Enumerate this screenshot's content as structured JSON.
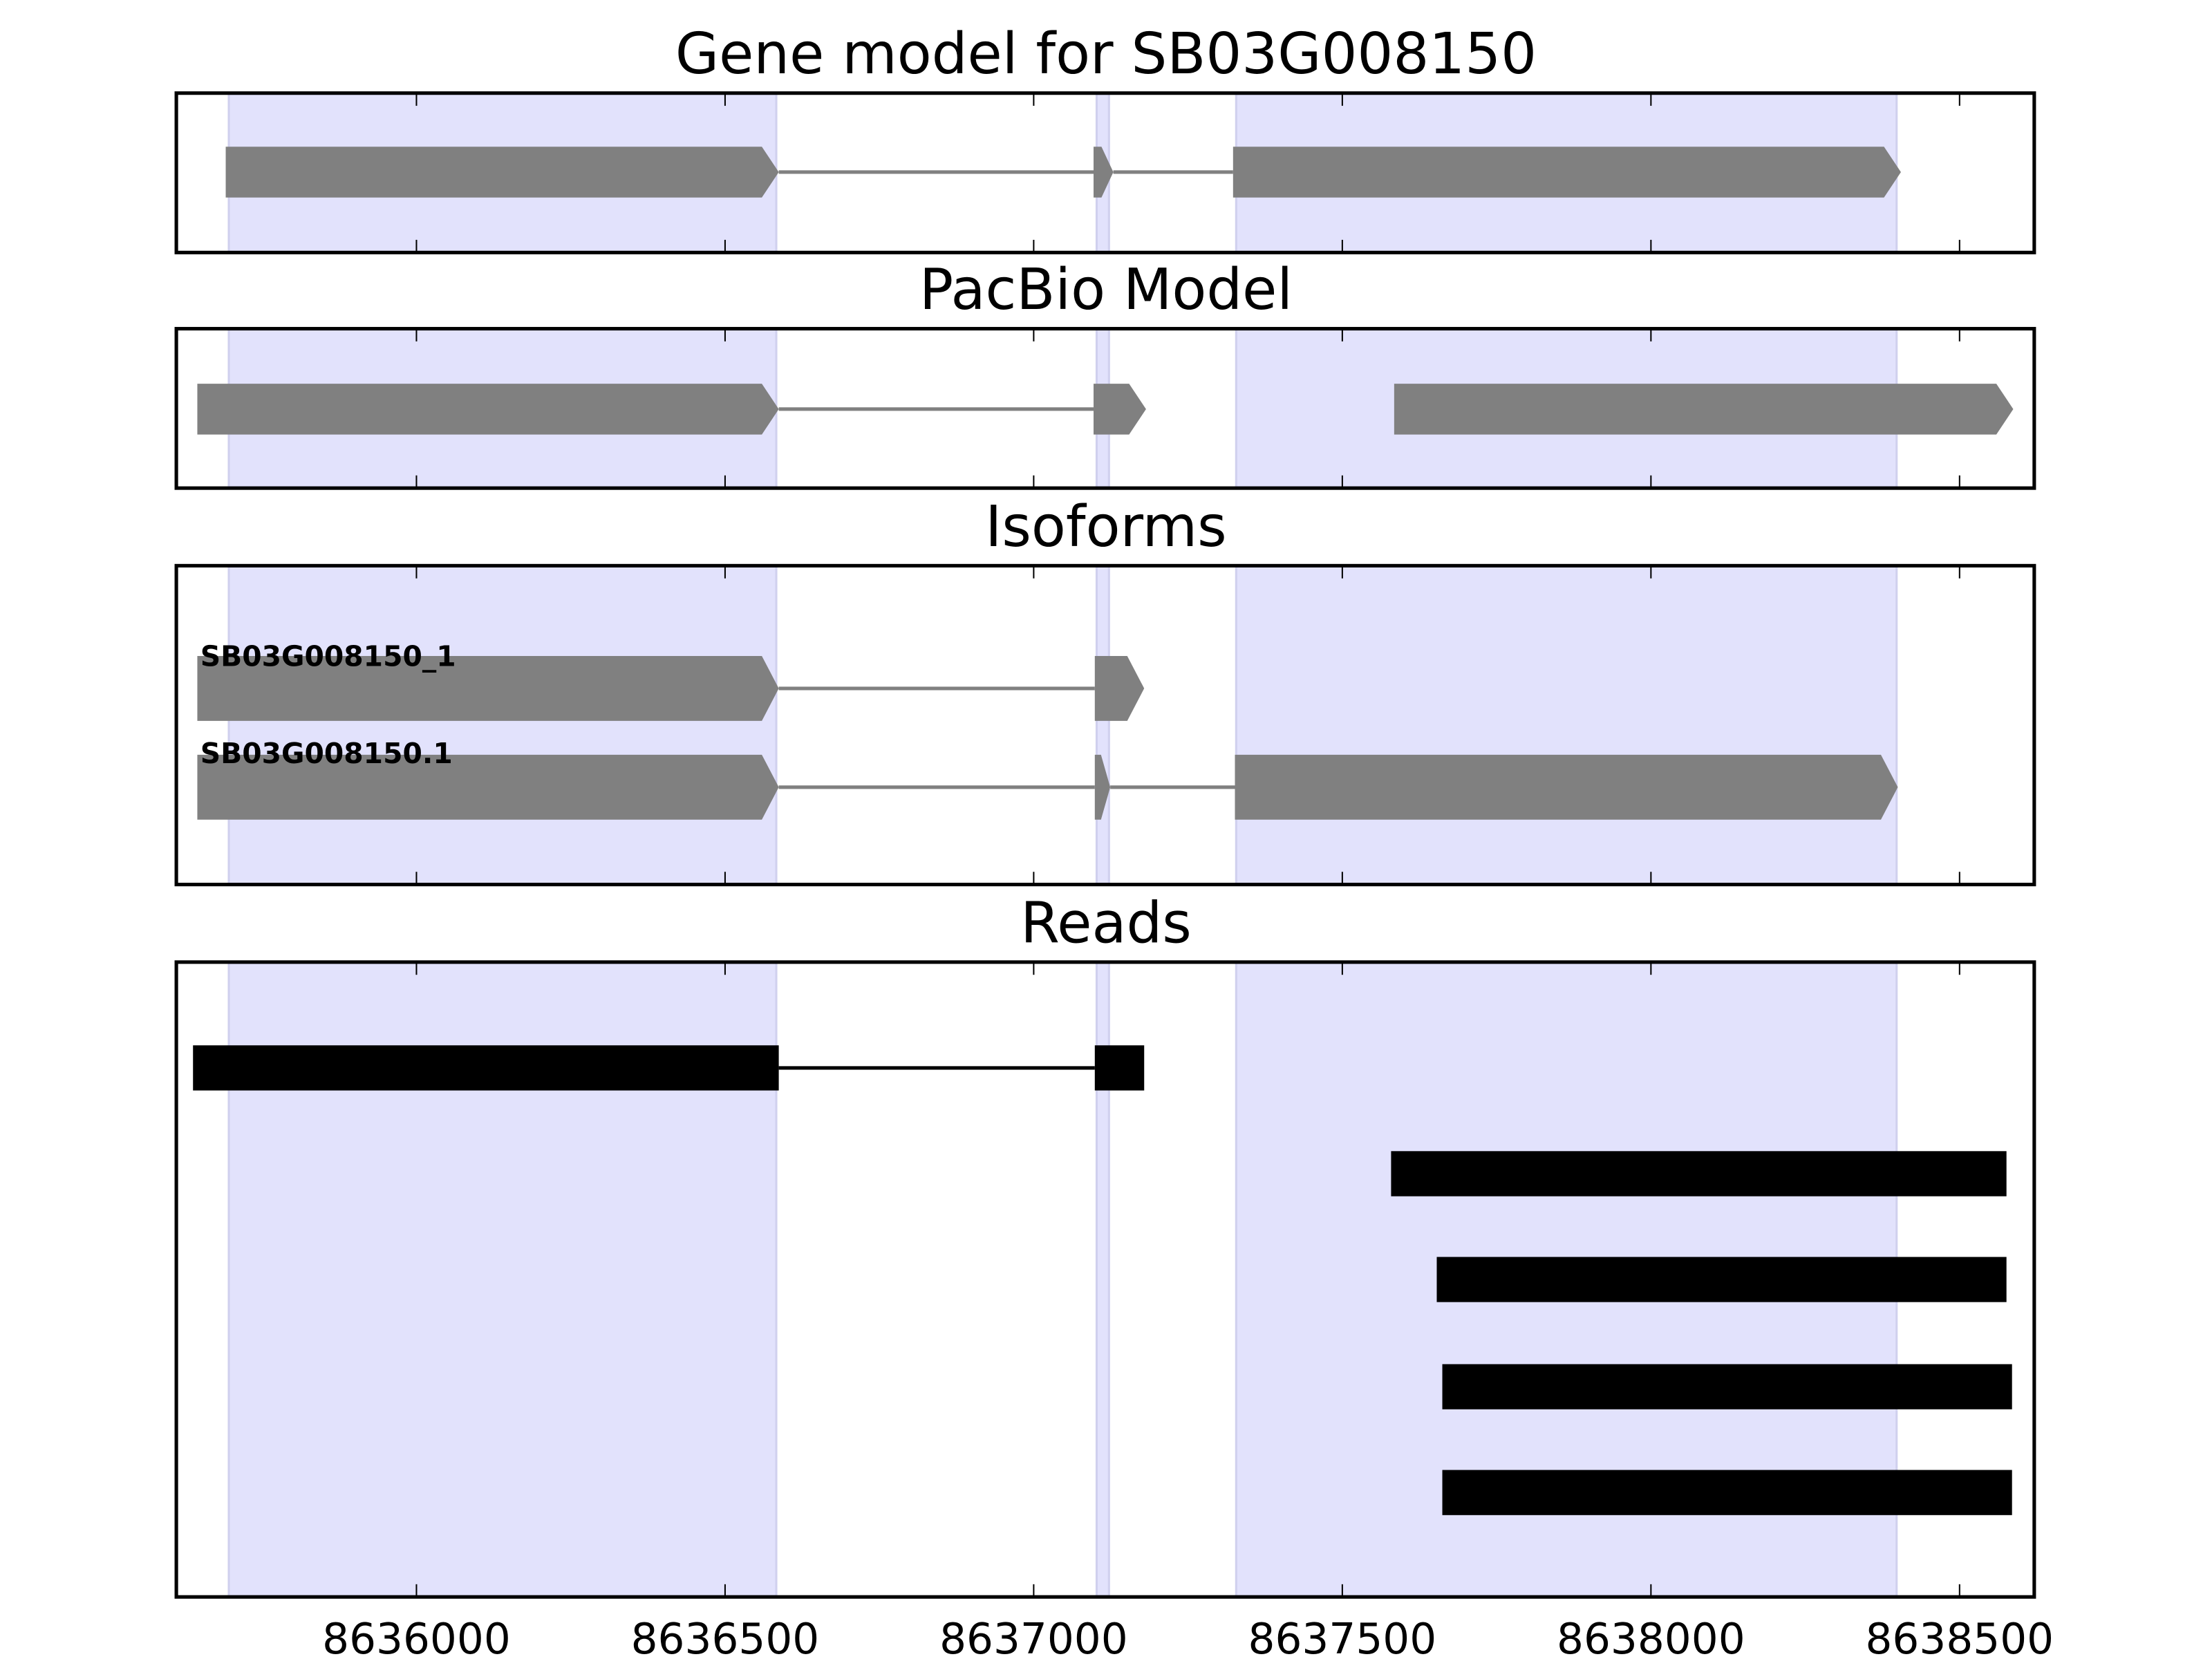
{
  "chart_data": {
    "type": "gene-track",
    "xlim": [
      8635611,
      8638621
    ],
    "x_ticks": [
      8636000,
      8636500,
      8637000,
      8637500,
      8638000,
      8638500
    ],
    "x_tick_labels": [
      "8636000",
      "8636500",
      "8637000",
      "8637500",
      "8638000",
      "8638500"
    ],
    "shaded_regions": [
      [
        8635696,
        8636583
      ],
      [
        8637102,
        8637122
      ],
      [
        8637328,
        8638398
      ]
    ],
    "colors": {
      "shade": "#e2e2fc",
      "shade_edge": "#d0d0ee",
      "feature": "#808080",
      "read": "#000000"
    },
    "panels": [
      {
        "title": "Gene model for SB03G008150",
        "style": "arrow",
        "tracks": [
          {
            "label": "",
            "exons": [
              [
                8635691,
                8636587
              ],
              [
                8637097,
                8637129
              ],
              [
                8637323,
                8638405
              ]
            ]
          }
        ]
      },
      {
        "title": "PacBio Model",
        "style": "arrow",
        "tracks": [
          {
            "label": "",
            "exons": [
              [
                8635645,
                8636587
              ],
              [
                8637097,
                8637182
              ]
            ],
            "connected": true
          },
          {
            "label": "",
            "exons": [
              [
                8637584,
                8638587
              ]
            ],
            "same_row": true
          }
        ]
      },
      {
        "title": "Isoforms",
        "style": "arrow",
        "tracks": [
          {
            "label": "SB03G008150_1",
            "exons": [
              [
                8635645,
                8636587
              ],
              [
                8637099,
                8637179
              ]
            ]
          },
          {
            "label": "SB03G008150.1",
            "exons": [
              [
                8635645,
                8636587
              ],
              [
                8637099,
                8637124
              ],
              [
                8637326,
                8638400
              ]
            ]
          }
        ]
      },
      {
        "title": "Reads",
        "style": "bar",
        "tracks": [
          {
            "label": "",
            "exons": [
              [
                8635638,
                8636587
              ],
              [
                8637099,
                8637179
              ]
            ]
          },
          {
            "label": "",
            "exons": [
              [
                8637579,
                8638576
              ]
            ]
          },
          {
            "label": "",
            "exons": [
              [
                8637653,
                8638576
              ]
            ]
          },
          {
            "label": "",
            "exons": [
              [
                8637662,
                8638585
              ]
            ]
          },
          {
            "label": "",
            "exons": [
              [
                8637662,
                8638585
              ]
            ]
          }
        ]
      }
    ]
  }
}
